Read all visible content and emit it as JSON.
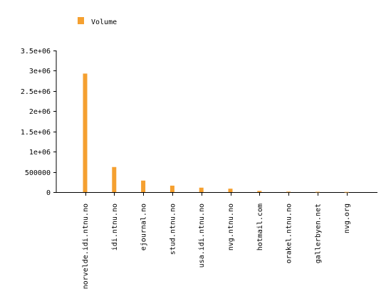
{
  "chart_data": {
    "type": "bar",
    "title": "",
    "xlabel": "",
    "ylabel": "",
    "ylim": [
      0,
      3500000
    ],
    "yticks": [
      0,
      500000,
      1000000,
      1500000,
      2000000,
      2500000,
      3000000,
      3500000
    ],
    "ytick_labels": [
      "0",
      "500000",
      "1e+06",
      "1.5e+06",
      "2e+06",
      "2.5e+06",
      "3e+06",
      "3.5e+06"
    ],
    "categories": [
      "norvelde.idi.ntnu.no",
      "idi.ntnu.no",
      "ejournal.no",
      "stud.ntnu.no",
      "usa.idi.ntnu.no",
      "nvg.ntnu.no",
      "hotmail.com",
      "orakel.ntnu.no",
      "gallerbyen.net",
      "nvg.org"
    ],
    "series": [
      {
        "name": "Volume",
        "color": "#f5a030",
        "values": [
          2930000,
          620000,
          285000,
          160000,
          110000,
          85000,
          30000,
          12000,
          8000,
          5000
        ]
      }
    ],
    "legend_position": "top-left",
    "grid": false
  }
}
